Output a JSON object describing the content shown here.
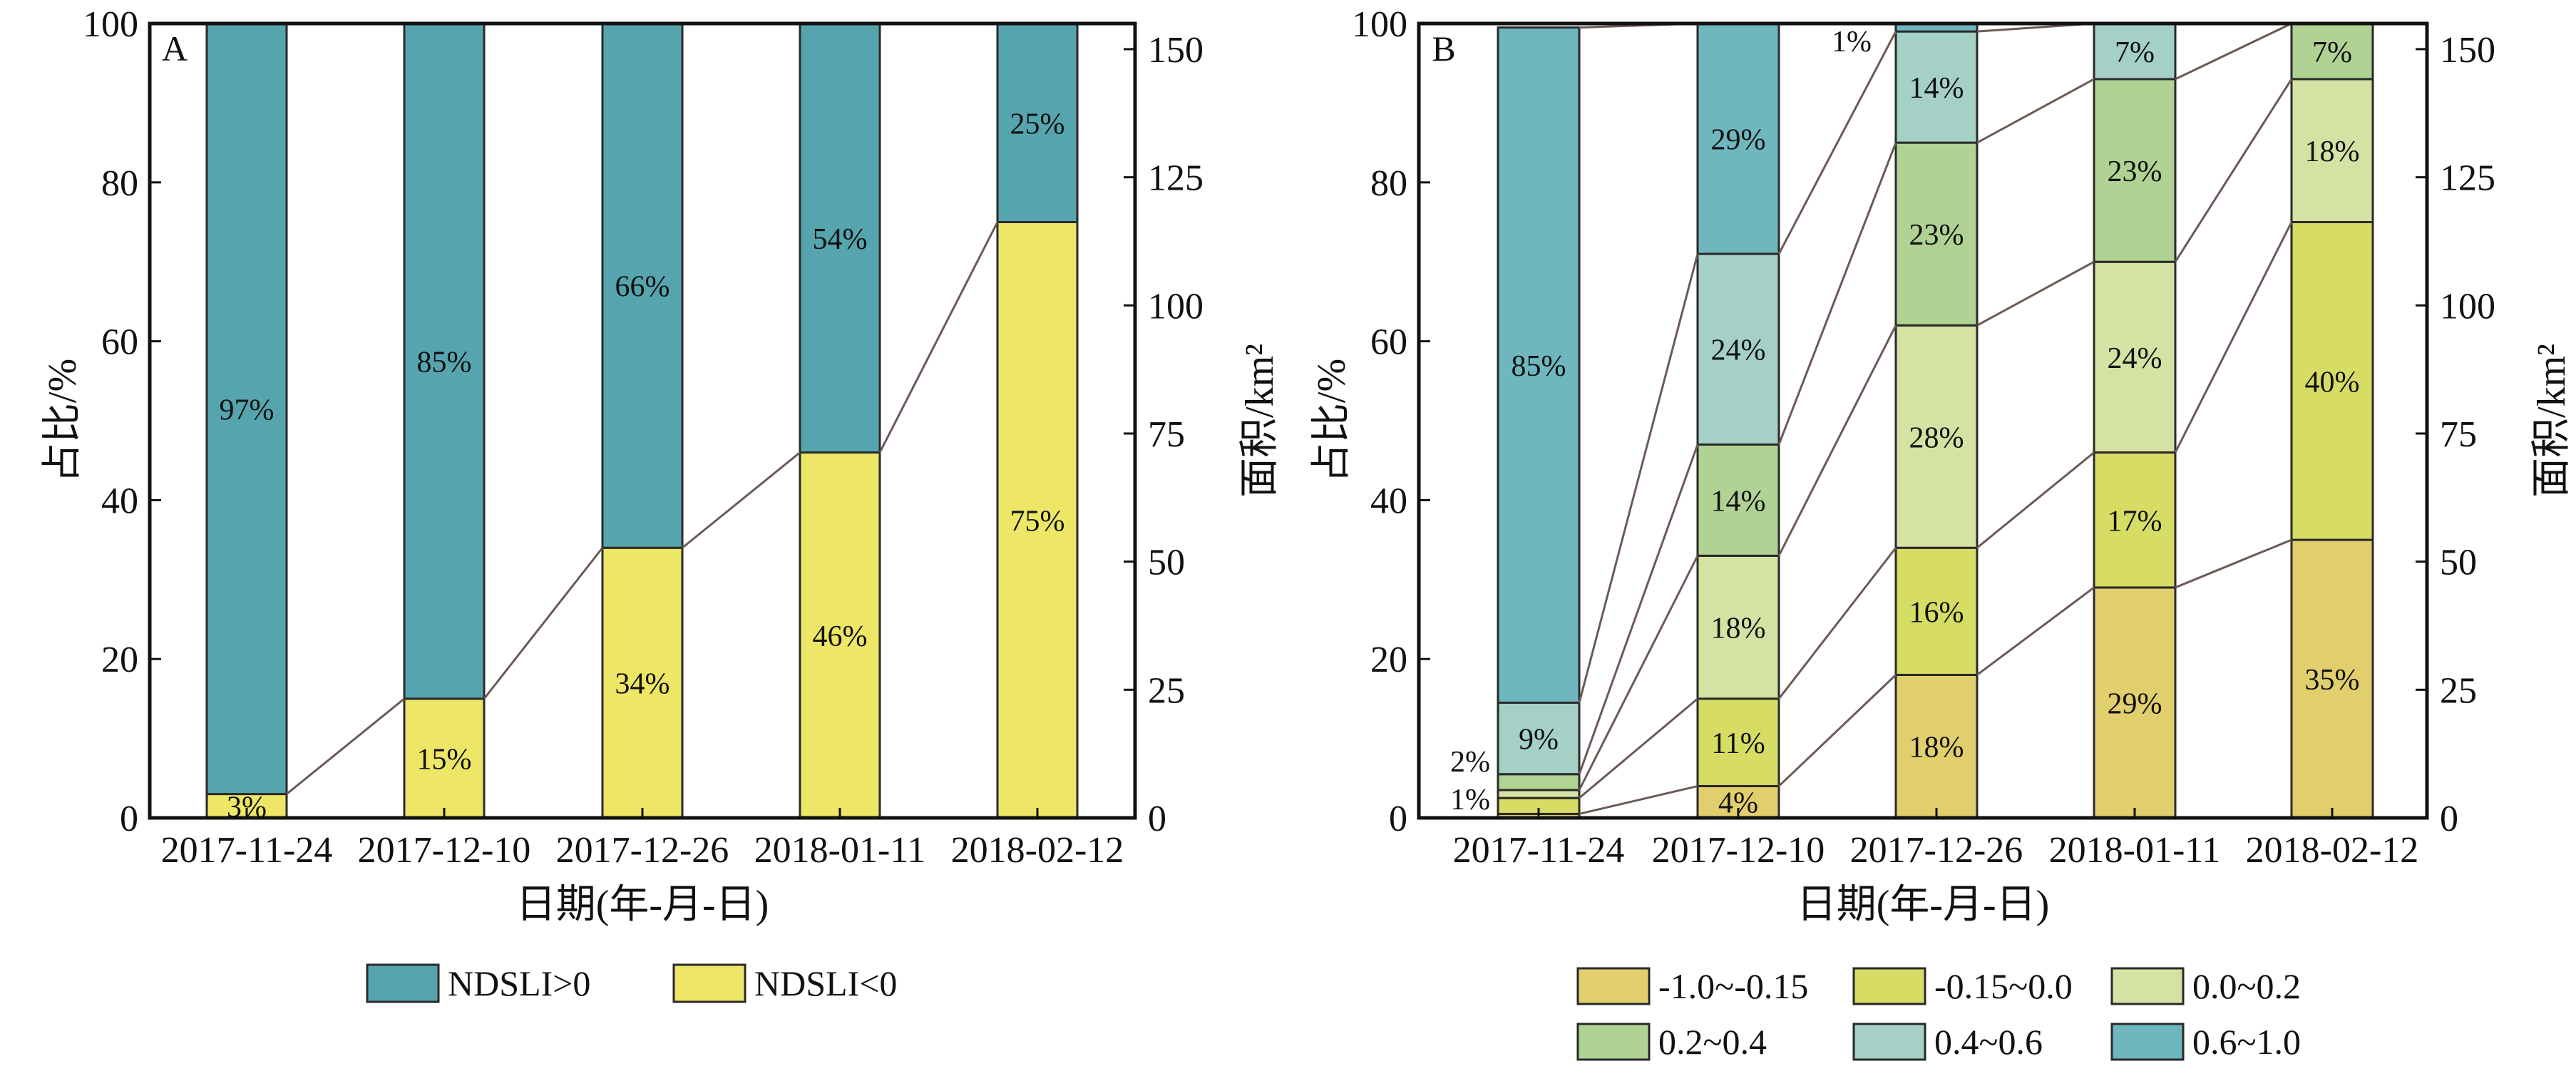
{
  "chart_data": [
    {
      "panel_label": "A",
      "type": "stacked-bar",
      "categories": [
        "2017-11-24",
        "2017-12-10",
        "2017-12-26",
        "2018-01-11",
        "2018-02-12"
      ],
      "series": [
        {
          "name": "NDSLI<0",
          "color": "#ede666",
          "values": [
            3,
            15,
            34,
            46,
            75
          ],
          "labels": [
            "3%",
            "15%",
            "34%",
            "46%",
            "75%"
          ]
        },
        {
          "name": "NDSLI>0",
          "color": "#56a5ae",
          "values": [
            97,
            85,
            66,
            54,
            25
          ],
          "labels": [
            "97%",
            "85%",
            "66%",
            "54%",
            "25%"
          ]
        }
      ],
      "xlabel": "日期(年-月-日)",
      "ylabel": "占比/%",
      "y2label": "面积/km²",
      "ylim": [
        0,
        100
      ],
      "yticks": [
        "0",
        "20",
        "40",
        "60",
        "80",
        "100"
      ],
      "y2lim": [
        0,
        155
      ],
      "y2ticks": [
        "0",
        "25",
        "50",
        "75",
        "100",
        "125",
        "150"
      ],
      "legend": {
        "position": "bottom",
        "order": [
          "NDSLI>0",
          "NDSLI<0"
        ]
      }
    },
    {
      "panel_label": "B",
      "type": "stacked-bar",
      "categories": [
        "2017-11-24",
        "2017-12-10",
        "2017-12-26",
        "2018-01-11",
        "2018-02-12"
      ],
      "series": [
        {
          "name": "-1.0~-0.15",
          "color": "#e1cf6e",
          "values": [
            0.5,
            4,
            18,
            29,
            35
          ],
          "labels": [
            "",
            "4%",
            "18%",
            "29%",
            "35%"
          ]
        },
        {
          "name": "-0.15~0.0",
          "color": "#d7dc64",
          "values": [
            2,
            11,
            16,
            17,
            40
          ],
          "labels": [
            "",
            "11%",
            "16%",
            "17%",
            "40%"
          ]
        },
        {
          "name": "0.0~0.2",
          "color": "#d4e2a4",
          "values": [
            1,
            18,
            28,
            24,
            18
          ],
          "labels": [
            "1%",
            "18%",
            "28%",
            "24%",
            "18%"
          ]
        },
        {
          "name": "0.2~0.4",
          "color": "#b0d394",
          "values": [
            2,
            14,
            23,
            23,
            7
          ],
          "labels": [
            "2%",
            "14%",
            "23%",
            "23%",
            "7%"
          ]
        },
        {
          "name": "0.4~0.6",
          "color": "#a4d0c6",
          "values": [
            9,
            24,
            14,
            7,
            0
          ],
          "labels": [
            "9%",
            "24%",
            "14%",
            "7%",
            ""
          ]
        },
        {
          "name": "0.6~1.0",
          "color": "#6fb7bf",
          "values": [
            85,
            29,
            1,
            0,
            0
          ],
          "labels": [
            "85%",
            "29%",
            "1%",
            "",
            ""
          ]
        }
      ],
      "xlabel": "日期(年-月-日)",
      "ylabel": "占比/%",
      "y2label": "面积/km²",
      "ylim": [
        0,
        100
      ],
      "yticks": [
        "0",
        "20",
        "40",
        "60",
        "80",
        "100"
      ],
      "y2lim": [
        0,
        155
      ],
      "y2ticks": [
        "0",
        "25",
        "50",
        "75",
        "100",
        "125",
        "150"
      ],
      "legend": {
        "position": "bottom",
        "columns": 3
      }
    }
  ]
}
